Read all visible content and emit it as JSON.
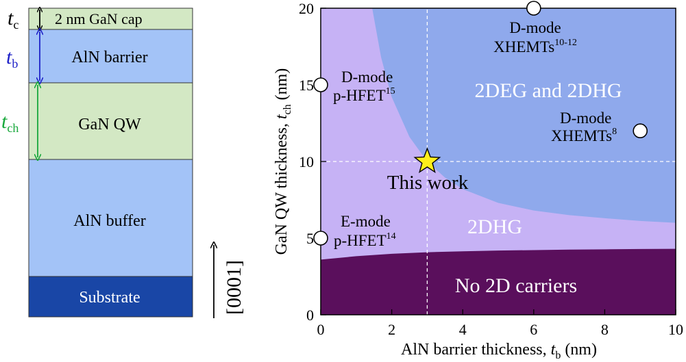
{
  "stack": {
    "cap_label": "2 nm GaN cap",
    "barrier_label": "AlN barrier",
    "qw_label": "GaN QW",
    "buffer_label": "AlN buffer",
    "substrate_label": "Substrate",
    "tc_symbol": "t",
    "tc_sub": "c",
    "tb_symbol": "t",
    "tb_sub": "b",
    "tch_symbol": "t",
    "tch_sub": "ch",
    "direction_label": "[0001]",
    "colors": {
      "cap": "#d3e8c4",
      "barrier": "#a3c3f7",
      "qw": "#d3e8c4",
      "buffer": "#a3c3f7",
      "substrate": "#1946a6",
      "tc_arrow": "#000000",
      "tb_arrow": "#1f22c8",
      "tch_arrow": "#18a83c"
    }
  },
  "chart_data": {
    "type": "area",
    "xlabel_main": "AlN barrier thickness, ",
    "xlabel_sym": "t",
    "xlabel_sub": "b",
    "xlabel_unit": " (nm)",
    "ylabel_main": "GaN QW thickness, ",
    "ylabel_sym": "t",
    "ylabel_sub": "ch",
    "ylabel_unit": " (nm)",
    "xlim": [
      0,
      10
    ],
    "ylim": [
      0,
      20
    ],
    "xticks": [
      0,
      2,
      4,
      6,
      8,
      10
    ],
    "yticks": [
      0,
      5,
      10,
      15,
      20
    ],
    "regions": [
      {
        "label": "2DEG and 2DHG",
        "color": "#8fa9ec"
      },
      {
        "label": "2DHG",
        "color": "#c6b2f5"
      },
      {
        "label": "No 2D carriers",
        "color": "#5a0f5c"
      }
    ],
    "boundary_2dhg": {
      "x": [
        0,
        1,
        2,
        3,
        4,
        5,
        6,
        7,
        8,
        9,
        10
      ],
      "y": [
        3.6,
        3.82,
        3.98,
        4.08,
        4.14,
        4.19,
        4.22,
        4.25,
        4.27,
        4.29,
        4.3
      ]
    },
    "boundary_2deg": {
      "x": [
        1.45,
        1.7,
        2.0,
        2.5,
        3.0,
        3.5,
        4.0,
        5.0,
        6.0,
        7.0,
        8.0,
        9.0,
        10.0
      ],
      "y": [
        20,
        16.8,
        14.2,
        11.6,
        10.0,
        8.95,
        8.2,
        7.3,
        6.8,
        6.5,
        6.3,
        6.12,
        6.0
      ]
    },
    "reference_lines": {
      "x": 3,
      "y": 10
    },
    "this_work": {
      "x": 3,
      "y": 10,
      "label": "This work",
      "color": "#ffef1a"
    },
    "points": [
      {
        "x": 6,
        "y": 20,
        "label": "D-mode",
        "label2": "XHEMTs",
        "sup": "10-12"
      },
      {
        "x": 0,
        "y": 15,
        "label": "D-mode",
        "label2": "p-HFET",
        "sup": "15"
      },
      {
        "x": 9,
        "y": 12,
        "label": "D-mode",
        "label2": "XHEMTs",
        "sup": "8"
      },
      {
        "x": 0,
        "y": 5,
        "label": "E-mode",
        "label2": "p-HFET",
        "sup": "14"
      }
    ]
  }
}
